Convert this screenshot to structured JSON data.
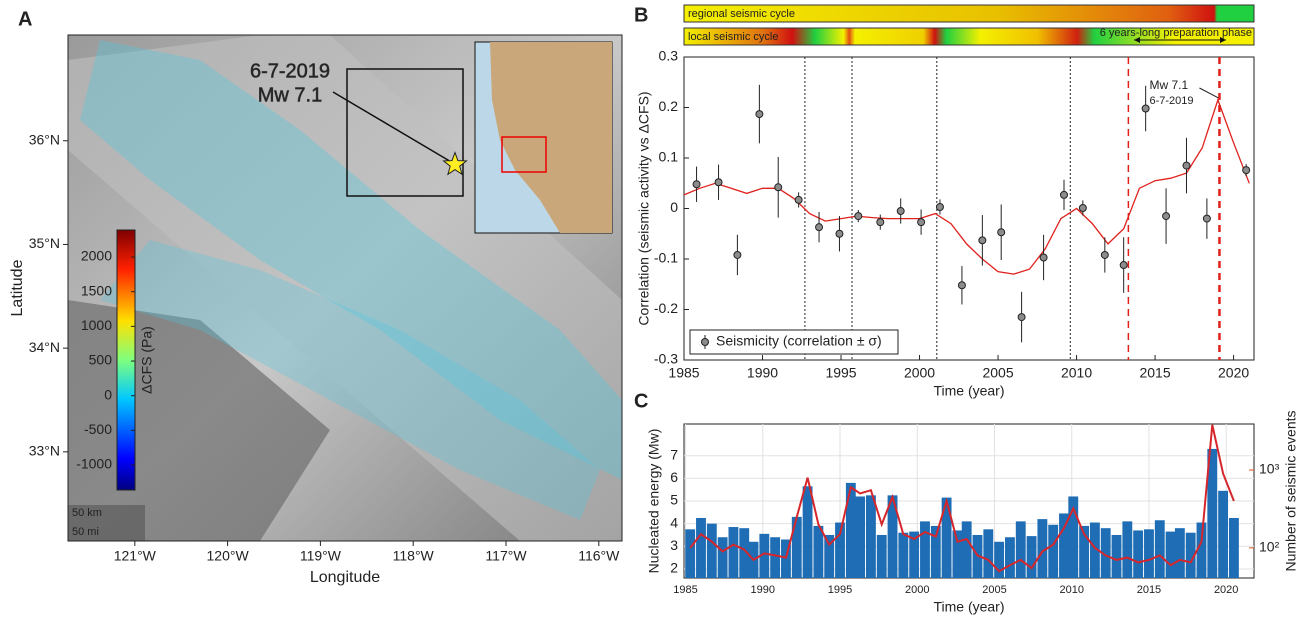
{
  "map": {
    "panel": "A",
    "xlabel": "Longitude",
    "ylabel": "Latitude",
    "xlim": [
      -121.72,
      -115.75
    ],
    "ylim": [
      32.14,
      37.02
    ],
    "xticks": [
      {
        "value": -121,
        "label": "121°W"
      },
      {
        "value": -120,
        "label": "120°W"
      },
      {
        "value": -119,
        "label": "119°W"
      },
      {
        "value": -118,
        "label": "118°W"
      },
      {
        "value": -117,
        "label": "117°W"
      },
      {
        "value": -116,
        "label": "116°W"
      }
    ],
    "yticks": [
      {
        "value": 36,
        "label": "36°N"
      },
      {
        "value": 35,
        "label": "35°N"
      },
      {
        "value": 34,
        "label": "34°N"
      },
      {
        "value": 33,
        "label": "33°N"
      }
    ],
    "epicenter": [
      -117.55,
      35.77
    ],
    "annotation_date": "6-7-2019",
    "annotation_mag": "Mw 7.1",
    "scale_km": "50 km",
    "scale_mi": "50 mi",
    "colorbar": {
      "label": "ΔCFS (Pa)",
      "lim": [
        -1360,
        2390
      ],
      "ticks": [
        2000,
        1500,
        1000,
        500,
        0,
        -500,
        -1000
      ]
    }
  },
  "chart_data": [
    {
      "type": "errorbar",
      "panel": "B",
      "xlabel": "Time (year)",
      "ylabel": "Correlation (seismic activity vs ΔCFS)",
      "xlim": [
        1985,
        2021.3
      ],
      "ylim": [
        -0.3,
        0.3
      ],
      "xticks": [
        1985,
        1990,
        1995,
        2000,
        2005,
        2010,
        2015,
        2020
      ],
      "yticks": [
        -0.3,
        -0.2,
        -0.1,
        0,
        0.1,
        0.2,
        0.3
      ],
      "series": [
        {
          "name": "Seismicity (correlation ± σ)",
          "color": "#8c8c8c",
          "x": [
            1985.8,
            1987.2,
            1988.4,
            1989.8,
            1991.0,
            1992.3,
            1993.6,
            1994.9,
            1996.1,
            1997.5,
            1998.8,
            2000.1,
            2001.3,
            2002.7,
            2004.0,
            2005.2,
            2006.5,
            2007.9,
            2009.2,
            2010.4,
            2011.8,
            2013.0,
            2014.4,
            2015.7,
            2017.0,
            2018.3,
            2020.8
          ],
          "values": [
            0.048,
            0.052,
            -0.092,
            0.187,
            0.042,
            0.017,
            -0.037,
            -0.05,
            -0.015,
            -0.027,
            -0.005,
            -0.027,
            0.003,
            -0.152,
            -0.063,
            -0.047,
            -0.215,
            -0.097,
            0.027,
            0.001,
            -0.092,
            -0.112,
            0.198,
            -0.015,
            0.085,
            -0.02,
            0.076
          ],
          "errors": [
            0.035,
            0.035,
            0.04,
            0.058,
            0.06,
            0.015,
            0.03,
            0.035,
            0.012,
            0.015,
            0.025,
            0.025,
            0.015,
            0.038,
            0.05,
            0.055,
            0.05,
            0.045,
            0.03,
            0.015,
            0.035,
            0.055,
            0.045,
            0.055,
            0.055,
            0.04,
            0.012
          ]
        }
      ],
      "fit": {
        "color": "#e0201b",
        "x": [
          1985,
          1986,
          1987,
          1988,
          1989,
          1990,
          1991,
          1992,
          1993,
          1994,
          1995,
          1996,
          1997,
          1998,
          1999,
          2000,
          2001,
          2002,
          2003,
          2004,
          2005,
          2006,
          2007,
          2008,
          2009,
          2010,
          2011,
          2012,
          2013,
          2014,
          2015,
          2016,
          2017,
          2018,
          2019,
          2020,
          2021
        ],
        "values": [
          0.027,
          0.04,
          0.05,
          0.04,
          0.03,
          0.04,
          0.04,
          0.02,
          -0.01,
          -0.025,
          -0.02,
          -0.015,
          -0.018,
          -0.02,
          -0.02,
          -0.02,
          -0.01,
          -0.03,
          -0.07,
          -0.1,
          -0.125,
          -0.13,
          -0.12,
          -0.08,
          -0.02,
          0.0,
          -0.03,
          -0.07,
          -0.04,
          0.04,
          0.055,
          0.06,
          0.07,
          0.12,
          0.215,
          0.13,
          0.05
        ]
      },
      "dotted_lines": [
        1992.7,
        1995.7,
        2001.1,
        2009.6
      ],
      "dashed_lines": [
        2013.3,
        2019.1
      ],
      "annotation_mag": "Mw 7.1",
      "annotation_date": "6-7-2019",
      "regional_bar": "regional seismic cycle",
      "local_bar": "local seismic cycle",
      "phase_label": "6 years-long preparation phase"
    },
    {
      "type": "bar",
      "panel": "C",
      "xlabel": "Time (year)",
      "ylabel": "Nucleated energy (Mw)",
      "y2label": "Number of seismic events",
      "xlim": [
        1984.9,
        2021.8
      ],
      "ylim": [
        1.6,
        8.4
      ],
      "y2lim": [
        41,
        3900
      ],
      "y2log": true,
      "grid": true,
      "xticks": [
        1985,
        1990,
        1995,
        2000,
        2005,
        2010,
        2015,
        2020
      ],
      "yticks": [
        2,
        3,
        4,
        5,
        6,
        7
      ],
      "y2ticks": [
        {
          "value": 100,
          "label": "10²"
        },
        {
          "value": 1000,
          "label": "10³"
        }
      ],
      "x": [
        1985.3,
        1986.0,
        1986.7,
        1987.4,
        1988.1,
        1988.8,
        1989.4,
        1990.1,
        1990.8,
        1991.5,
        1992.2,
        1992.9,
        1993.6,
        1994.3,
        1995.0,
        1995.7,
        1996.3,
        1997.0,
        1997.7,
        1998.4,
        1999.1,
        1999.8,
        2000.5,
        2001.2,
        2001.9,
        2002.6,
        2003.2,
        2003.9,
        2004.6,
        2005.3,
        2006.0,
        2006.7,
        2007.4,
        2008.1,
        2008.8,
        2009.5,
        2010.1,
        2010.8,
        2011.5,
        2012.2,
        2012.9,
        2013.6,
        2014.3,
        2015.0,
        2015.7,
        2016.4,
        2017.0,
        2017.7,
        2018.4,
        2019.1,
        2019.8,
        2020.5
      ],
      "bars": {
        "color": "#1f6db5",
        "values": [
          3.75,
          4.25,
          4.0,
          3.4,
          3.85,
          3.8,
          3.2,
          3.55,
          3.4,
          3.3,
          4.3,
          5.65,
          3.9,
          3.5,
          4.05,
          5.8,
          5.2,
          5.25,
          3.5,
          5.25,
          3.6,
          3.65,
          4.1,
          3.9,
          5.15,
          3.7,
          4.1,
          3.5,
          3.75,
          3.2,
          3.4,
          4.1,
          3.45,
          4.2,
          3.95,
          4.45,
          5.2,
          3.9,
          4.05,
          3.8,
          3.5,
          4.1,
          3.7,
          3.75,
          4.15,
          3.65,
          3.8,
          3.6,
          4.05,
          7.3,
          5.45,
          4.25
        ]
      },
      "line": {
        "color": "#d6262b",
        "axis": "y2",
        "values": [
          100,
          150,
          120,
          90,
          110,
          95,
          70,
          85,
          80,
          75,
          250,
          800,
          200,
          110,
          150,
          600,
          500,
          550,
          200,
          450,
          150,
          130,
          160,
          140,
          400,
          120,
          130,
          80,
          70,
          50,
          60,
          70,
          55,
          90,
          110,
          180,
          320,
          150,
          100,
          80,
          70,
          75,
          65,
          70,
          80,
          60,
          70,
          65,
          120,
          3800,
          900,
          400
        ]
      }
    }
  ]
}
